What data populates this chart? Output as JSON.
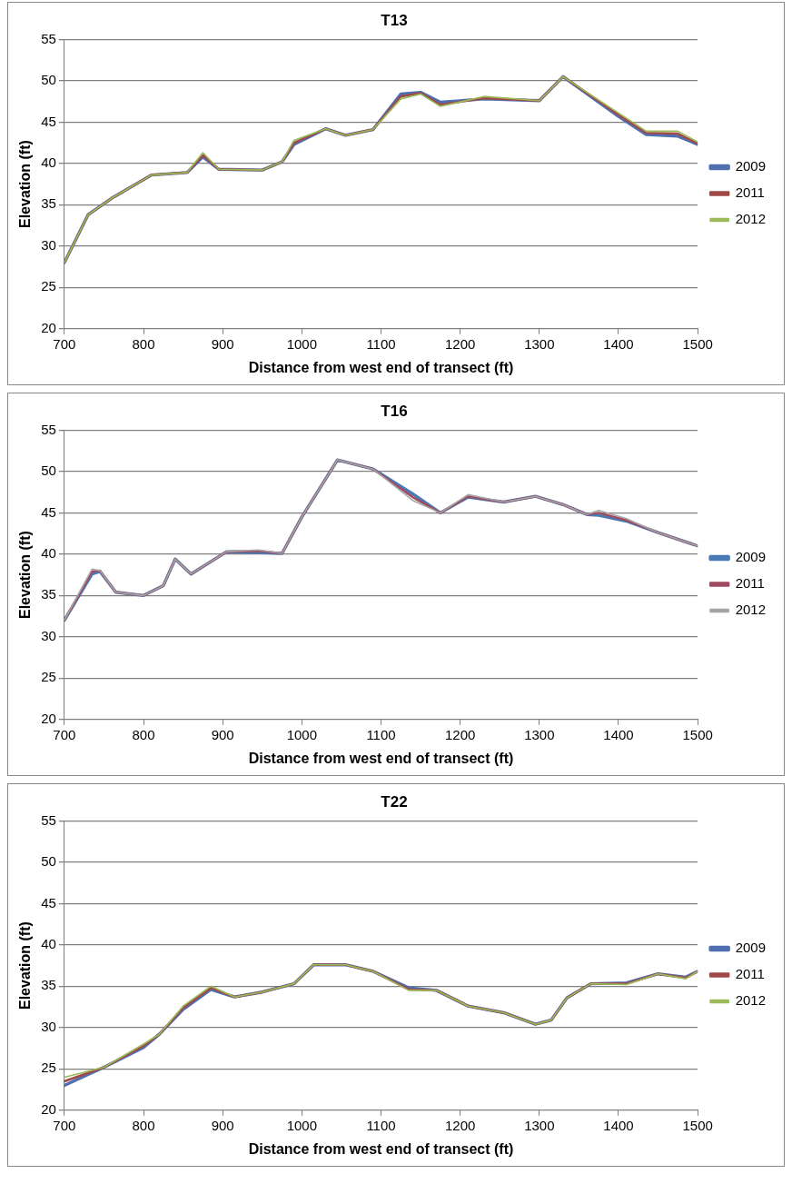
{
  "chart_data": [
    {
      "type": "line",
      "title": "T13",
      "xlabel": "Distance from west end of transect (ft)",
      "ylabel": "Elevation (ft)",
      "xlim": [
        700,
        1500
      ],
      "xticks": [
        700,
        800,
        900,
        1000,
        1100,
        1200,
        1300,
        1400,
        1500
      ],
      "ylim": [
        20,
        55
      ],
      "yticks": [
        20,
        25,
        30,
        35,
        40,
        45,
        50,
        55
      ],
      "grid": "y",
      "legend": "right",
      "marker": "none",
      "x": [
        700,
        730,
        760,
        810,
        855,
        875,
        895,
        950,
        975,
        990,
        1030,
        1055,
        1090,
        1125,
        1150,
        1175,
        1230,
        1300,
        1330,
        1400,
        1435,
        1475,
        1500
      ],
      "series": [
        {
          "name": "2009",
          "color": "#4f6fb0",
          "values": [
            28,
            33.8,
            35.8,
            38.6,
            38.9,
            40.8,
            39.3,
            39.2,
            40.2,
            42.3,
            44.2,
            43.4,
            44.1,
            48.4,
            48.6,
            47.4,
            47.8,
            47.6,
            50.5,
            45.7,
            43.5,
            43.3,
            42.3
          ]
        },
        {
          "name": "2011",
          "color": "#a04a48",
          "values": [
            28,
            33.8,
            35.8,
            38.6,
            38.9,
            41,
            39.3,
            39.2,
            40.2,
            42.5,
            44.2,
            43.4,
            44.1,
            48.1,
            48.5,
            47.1,
            47.9,
            47.6,
            50.5,
            45.9,
            43.7,
            43.6,
            42.4
          ]
        },
        {
          "name": "2012",
          "color": "#9bbb59",
          "values": [
            28,
            33.8,
            35.8,
            38.6,
            38.9,
            41.3,
            39.3,
            39.2,
            40.2,
            42.8,
            44.2,
            43.4,
            44.1,
            47.8,
            48.4,
            46.9,
            48.1,
            47.6,
            50.5,
            46.1,
            43.9,
            43.9,
            42.6
          ]
        }
      ]
    },
    {
      "type": "line",
      "title": "T16",
      "xlabel": "Distance from west end of transect (ft)",
      "ylabel": "Elevation (ft)",
      "xlim": [
        700,
        1500
      ],
      "xticks": [
        700,
        800,
        900,
        1000,
        1100,
        1200,
        1300,
        1400,
        1500
      ],
      "ylim": [
        20,
        55
      ],
      "yticks": [
        20,
        25,
        30,
        35,
        40,
        45,
        50,
        55
      ],
      "grid": "y",
      "legend": "right",
      "marker": "none",
      "x": [
        700,
        735,
        745,
        765,
        800,
        825,
        840,
        860,
        905,
        945,
        975,
        1000,
        1045,
        1090,
        1140,
        1175,
        1210,
        1255,
        1295,
        1330,
        1360,
        1375,
        1410,
        1450,
        1500
      ],
      "series": [
        {
          "name": "2009",
          "color": "#4a7ab5",
          "values": [
            32,
            37.6,
            37.9,
            35.4,
            35,
            36.2,
            39.4,
            37.6,
            40.3,
            40.2,
            40.1,
            44.5,
            51.4,
            50.3,
            47.3,
            45,
            46.9,
            46.3,
            47,
            46,
            44.8,
            44.7,
            44,
            42.6,
            41
          ]
        },
        {
          "name": "2011",
          "color": "#a04a60",
          "values": [
            32,
            37.9,
            38,
            35.4,
            35,
            36.2,
            39.4,
            37.6,
            40.3,
            40.4,
            40.1,
            44.5,
            51.4,
            50.3,
            46.9,
            45,
            47,
            46.3,
            47,
            46,
            44.8,
            45,
            44.1,
            42.6,
            41
          ]
        },
        {
          "name": "2012",
          "color": "#a5a5a5",
          "values": [
            32,
            38.2,
            38,
            35.4,
            35,
            36.2,
            39.4,
            37.6,
            40.3,
            40.5,
            40.1,
            44.5,
            51.4,
            50.3,
            46.5,
            45,
            47.2,
            46.3,
            47,
            46,
            44.8,
            45.3,
            44.3,
            42.6,
            41
          ]
        }
      ]
    },
    {
      "type": "line",
      "title": "T22",
      "xlabel": "Distance from west end of transect (ft)",
      "ylabel": "Elevation (ft)",
      "xlim": [
        700,
        1500
      ],
      "xticks": [
        700,
        800,
        900,
        1000,
        1100,
        1200,
        1300,
        1400,
        1500
      ],
      "ylim": [
        20,
        55
      ],
      "yticks": [
        20,
        25,
        30,
        35,
        40,
        45,
        50,
        55
      ],
      "grid": "y",
      "legend": "right",
      "marker": "none",
      "x": [
        700,
        750,
        800,
        820,
        850,
        885,
        915,
        950,
        990,
        1015,
        1055,
        1090,
        1135,
        1170,
        1210,
        1255,
        1295,
        1315,
        1335,
        1365,
        1410,
        1450,
        1485,
        1500
      ],
      "series": [
        {
          "name": "2009",
          "color": "#4f6fb0",
          "values": [
            23,
            25.2,
            27.6,
            29.2,
            32.2,
            34.6,
            33.7,
            34.3,
            35.3,
            37.6,
            37.6,
            36.8,
            34.8,
            34.5,
            32.6,
            31.8,
            30.4,
            30.9,
            33.6,
            35.3,
            35.4,
            36.5,
            36.1,
            36.8
          ]
        },
        {
          "name": "2011",
          "color": "#a04a48",
          "values": [
            23.5,
            25.2,
            27.8,
            29.2,
            32.4,
            34.8,
            33.7,
            34.3,
            35.3,
            37.6,
            37.6,
            36.8,
            34.6,
            34.5,
            32.6,
            31.8,
            30.4,
            30.9,
            33.6,
            35.3,
            35.3,
            36.5,
            36,
            36.8
          ]
        },
        {
          "name": "2012",
          "color": "#9bbb59",
          "values": [
            24,
            25.2,
            28,
            29.2,
            32.6,
            35,
            33.7,
            34.3,
            35.3,
            37.6,
            37.6,
            36.8,
            34.5,
            34.5,
            32.6,
            31.8,
            30.4,
            30.9,
            33.6,
            35.3,
            35.2,
            36.5,
            35.9,
            36.8
          ]
        }
      ]
    }
  ]
}
